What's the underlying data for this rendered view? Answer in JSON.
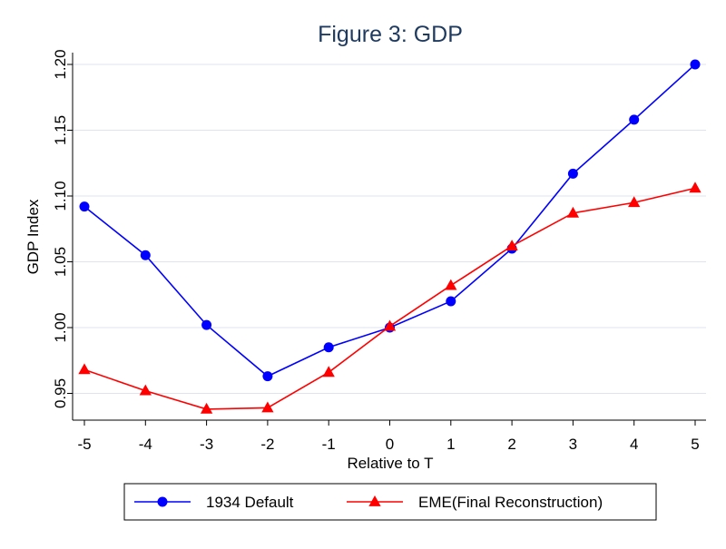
{
  "chart_data": {
    "type": "line",
    "title": "Figure 3: GDP",
    "xlabel": "Relative to T",
    "ylabel": "GDP Index",
    "x": [
      -5,
      -4,
      -3,
      -2,
      -1,
      0,
      1,
      2,
      3,
      4,
      5
    ],
    "xticks": [
      "-5",
      "-4",
      "-3",
      "-2",
      "-1",
      "0",
      "1",
      "2",
      "3",
      "4",
      "5"
    ],
    "yticks": [
      "0.95",
      "1.00",
      "1.05",
      "1.10",
      "1.15",
      "1.20"
    ],
    "ytick_values": [
      0.95,
      1.0,
      1.05,
      1.1,
      1.15,
      1.2
    ],
    "xlim": [
      -5.2,
      5.2
    ],
    "ylim": [
      0.932,
      1.21
    ],
    "grid": true,
    "legend_position": "bottom",
    "series": [
      {
        "name": "1934 Default",
        "color": "#0000ff",
        "marker": "circle",
        "values": [
          1.092,
          1.055,
          1.002,
          0.963,
          0.985,
          1.0,
          1.02,
          1.06,
          1.117,
          1.158,
          1.2
        ]
      },
      {
        "name": "EME(Final Reconstruction)",
        "color": "#ff0000",
        "marker": "triangle",
        "values": [
          0.968,
          0.952,
          0.938,
          0.939,
          0.966,
          1.001,
          1.032,
          1.062,
          1.087,
          1.095,
          1.106
        ]
      }
    ]
  }
}
